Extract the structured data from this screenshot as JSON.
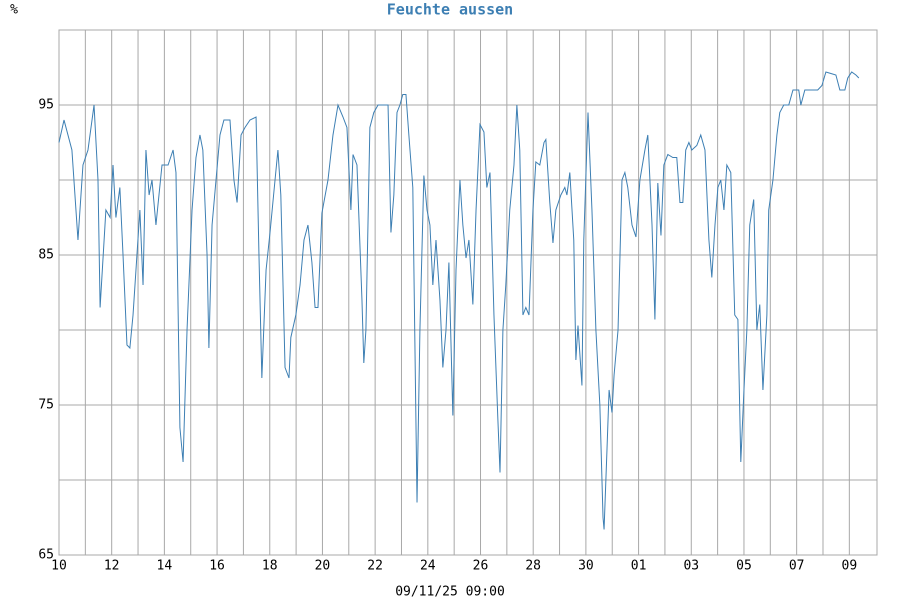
{
  "chart_data": {
    "type": "line",
    "title": "Feuchte aussen",
    "ylabel": "%",
    "xlabel": "09/11/25 09:00",
    "color": "#3d7fb3",
    "x": [
      0,
      0.19,
      0.49,
      0.72,
      0.91,
      1.1,
      1.33,
      1.48,
      1.56,
      1.78,
      1.94,
      2.05,
      2.16,
      2.31,
      2.43,
      2.58,
      2.69,
      2.81,
      3.07,
      3.19,
      3.3,
      3.42,
      3.53,
      3.68,
      3.91,
      4.14,
      4.33,
      4.44,
      4.59,
      4.71,
      4.86,
      5.05,
      5.2,
      5.35,
      5.46,
      5.62,
      5.69,
      5.81,
      5.96,
      6.11,
      6.26,
      6.49,
      6.64,
      6.76,
      6.91,
      7.06,
      7.25,
      7.48,
      7.59,
      7.7,
      7.86,
      8.01,
      8.2,
      8.31,
      8.42,
      8.58,
      8.73,
      8.8,
      8.99,
      9.15,
      9.3,
      9.45,
      9.6,
      9.72,
      9.83,
      9.98,
      10.21,
      10.4,
      10.59,
      10.78,
      10.93,
      11.08,
      11.16,
      11.31,
      11.5,
      11.57,
      11.65,
      11.8,
      11.95,
      12.11,
      12.33,
      12.49,
      12.6,
      12.71,
      12.83,
      12.94,
      13.05,
      13.17,
      13.28,
      13.43,
      13.59,
      13.7,
      13.85,
      13.97,
      14.08,
      14.19,
      14.31,
      14.46,
      14.57,
      14.69,
      14.8,
      14.95,
      15.07,
      15.22,
      15.33,
      15.45,
      15.56,
      15.71,
      15.83,
      15.98,
      16.13,
      16.24,
      16.36,
      16.51,
      16.66,
      16.74,
      16.85,
      16.96,
      17.11,
      17.27,
      17.38,
      17.49,
      17.61,
      17.72,
      17.84,
      17.99,
      18.1,
      18.25,
      18.41,
      18.48,
      18.63,
      18.75,
      18.86,
      19.05,
      19.2,
      19.28,
      19.39,
      19.54,
      19.62,
      19.7,
      19.85,
      19.92,
      20.08,
      20.23,
      20.38,
      20.53,
      20.65,
      20.69,
      20.8,
      20.88,
      20.99,
      21.07,
      21.22,
      21.37,
      21.48,
      21.59,
      21.75,
      21.9,
      22.05,
      22.24,
      22.35,
      22.51,
      22.62,
      22.73,
      22.85,
      22.96,
      23.11,
      23.3,
      23.45,
      23.57,
      23.68,
      23.79,
      23.91,
      24.02,
      24.21,
      24.36,
      24.52,
      24.67,
      24.78,
      24.9,
      25.01,
      25.12,
      25.24,
      25.35,
      25.5,
      25.65,
      25.77,
      25.88,
      26.0,
      26.11,
      26.22,
      26.37,
      26.49,
      26.6,
      26.72,
      26.87,
      26.94,
      27.1,
      27.25,
      27.36,
      27.51,
      27.7,
      27.86,
      28.08,
      28.16,
      28.31,
      28.58,
      28.8,
      28.96,
      29.11,
      29.3,
      29.49,
      29.64,
      29.83,
      29.94,
      30.09,
      30.25,
      30.36
    ],
    "values": [
      92.5,
      94,
      92,
      86,
      91,
      92,
      95,
      90,
      81.5,
      88,
      87.5,
      91,
      87.5,
      89.5,
      85,
      79,
      78.8,
      81,
      88,
      83,
      92,
      89,
      90,
      87,
      91,
      91,
      92,
      90.5,
      73.5,
      71.2,
      80,
      88,
      91.5,
      93,
      92,
      85,
      78.8,
      87,
      90,
      93,
      94,
      94,
      90,
      88.5,
      93,
      93.5,
      94,
      94.2,
      85,
      76.8,
      84,
      86.5,
      90,
      92,
      89,
      77.5,
      76.8,
      79.5,
      81,
      83,
      86,
      87,
      84.5,
      81.5,
      81.5,
      87.8,
      90,
      93,
      95,
      94.2,
      93.5,
      88,
      91.7,
      91,
      82,
      77.8,
      80,
      93.5,
      94.5,
      95,
      95,
      95,
      86.5,
      89,
      94.5,
      95,
      95.7,
      95.7,
      93,
      89.5,
      68.5,
      80,
      90.3,
      88,
      87,
      83,
      86,
      82,
      77.5,
      80,
      84.5,
      74.3,
      84,
      90,
      87,
      84.8,
      86,
      81.7,
      88,
      93.7,
      93.2,
      89.5,
      90.5,
      81,
      74,
      70.5,
      80,
      83,
      88,
      91,
      95,
      92,
      81,
      81.5,
      81,
      88,
      91.2,
      91,
      92.5,
      92.7,
      88.5,
      85.8,
      88,
      89,
      89.5,
      89,
      90.5,
      86,
      78,
      80.3,
      76.3,
      86,
      94.5,
      88,
      80,
      75,
      67.5,
      66.7,
      72,
      76,
      74.5,
      77,
      80,
      90,
      90.5,
      89.5,
      87,
      86.2,
      90,
      92,
      93,
      87,
      80.7,
      89.8,
      86.3,
      91,
      91.7,
      91.5,
      91.5,
      88.5,
      88.5,
      92,
      92.5,
      92,
      92.3,
      93,
      92,
      86,
      83.5,
      87,
      89.5,
      90,
      88,
      91,
      90.5,
      81,
      80.7,
      71.2,
      76,
      80,
      87,
      88.7,
      80,
      81.7,
      76,
      81,
      88,
      90,
      93,
      94.5,
      95,
      95,
      96,
      96,
      95,
      96,
      96,
      96,
      96.3,
      97.2,
      97.1,
      97,
      96,
      96,
      96.8,
      97.2,
      97,
      96.8
    ],
    "xlim": [
      0,
      31.05
    ],
    "xticks": [
      {
        "value": 0,
        "label": "10"
      },
      {
        "value": 2,
        "label": "12"
      },
      {
        "value": 4,
        "label": "14"
      },
      {
        "value": 6,
        "label": "16"
      },
      {
        "value": 8,
        "label": "18"
      },
      {
        "value": 10,
        "label": "20"
      },
      {
        "value": 12,
        "label": "22"
      },
      {
        "value": 14,
        "label": "24"
      },
      {
        "value": 16,
        "label": "26"
      },
      {
        "value": 18,
        "label": "28"
      },
      {
        "value": 20,
        "label": "30"
      },
      {
        "value": 22,
        "label": "01"
      },
      {
        "value": 24,
        "label": "03"
      },
      {
        "value": 26,
        "label": "05"
      },
      {
        "value": 28,
        "label": "07"
      },
      {
        "value": 30,
        "label": "09"
      }
    ],
    "xminor": [
      1,
      3,
      5,
      7,
      9,
      11,
      13,
      15,
      17,
      19,
      21,
      23,
      25,
      27,
      29
    ],
    "ylim": [
      65,
      100
    ],
    "yticks": [
      65,
      75,
      85,
      95
    ],
    "yminor": [
      70,
      80,
      90,
      100
    ],
    "grid": true
  }
}
